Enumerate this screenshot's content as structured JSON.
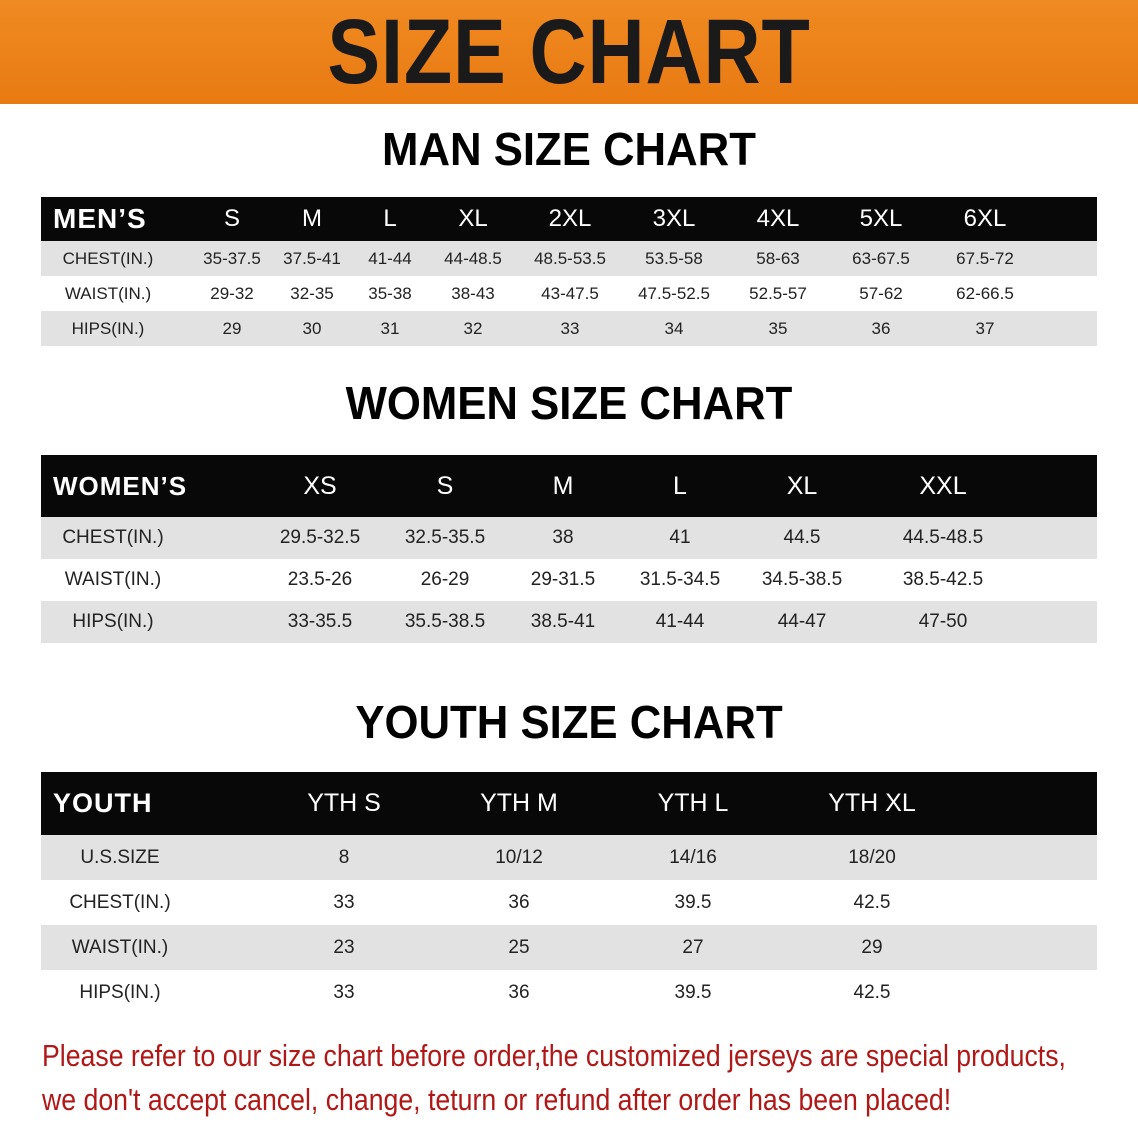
{
  "banner_title": "SIZE CHART",
  "men": {
    "title": "MAN SIZE CHART",
    "header": [
      "MEN’S",
      "S",
      "M",
      "L",
      "XL",
      "2XL",
      "3XL",
      "4XL",
      "5XL",
      "6XL"
    ],
    "rows": [
      [
        "CHEST(IN.)",
        "35-37.5",
        "37.5-41",
        "41-44",
        "44-48.5",
        "48.5-53.5",
        "53.5-58",
        "58-63",
        "63-67.5",
        "67.5-72"
      ],
      [
        "WAIST(IN.)",
        "29-32",
        "32-35",
        "35-38",
        "38-43",
        "43-47.5",
        "47.5-52.5",
        "52.5-57",
        "57-62",
        "62-66.5"
      ],
      [
        "HIPS(IN.)",
        "29",
        "30",
        "31",
        "32",
        "33",
        "34",
        "35",
        "36",
        "37"
      ]
    ]
  },
  "women": {
    "title": "WOMEN SIZE CHART",
    "header": [
      "WOMEN’S",
      "XS",
      "S",
      "M",
      "L",
      "XL",
      "XXL"
    ],
    "rows": [
      [
        "CHEST(IN.)",
        "29.5-32.5",
        "32.5-35.5",
        "38",
        "41",
        "44.5",
        "44.5-48.5"
      ],
      [
        "WAIST(IN.)",
        "23.5-26",
        "26-29",
        "29-31.5",
        "31.5-34.5",
        "34.5-38.5",
        "38.5-42.5"
      ],
      [
        "HIPS(IN.)",
        "33-35.5",
        "35.5-38.5",
        "38.5-41",
        "41-44",
        "44-47",
        "47-50"
      ]
    ]
  },
  "youth": {
    "title": "YOUTH SIZE CHART",
    "header": [
      "YOUTH",
      "YTH S",
      "YTH M",
      "YTH L",
      "YTH XL"
    ],
    "rows": [
      [
        "U.S.SIZE",
        "8",
        "10/12",
        "14/16",
        "18/20"
      ],
      [
        "CHEST(IN.)",
        "33",
        "36",
        "39.5",
        "42.5"
      ],
      [
        "WAIST(IN.)",
        "23",
        "25",
        "27",
        "29"
      ],
      [
        "HIPS(IN.)",
        "33",
        "36",
        "39.5",
        "42.5"
      ]
    ]
  },
  "notice": [
    "Please refer to our size chart before order,the customized jerseys are special products,",
    "we don't accept cancel, change, teturn or refund after order has been placed!"
  ],
  "colors": {
    "banner": "#ee8419",
    "header_row": "#080808",
    "notice": "#b01818"
  }
}
